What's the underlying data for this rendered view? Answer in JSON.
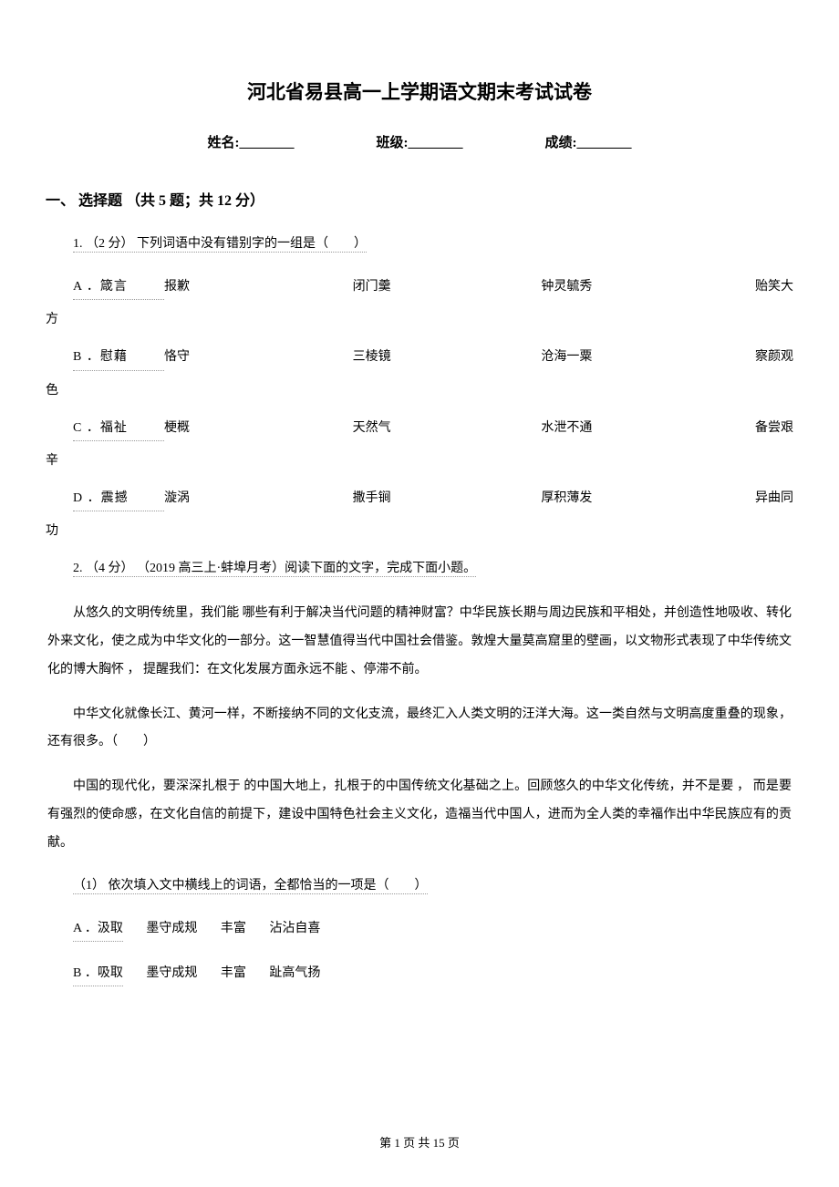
{
  "title": "河北省易县高一上学期语文期末考试试卷",
  "info": {
    "name_label": "姓名:________",
    "class_label": "班级:________",
    "score_label": "成绩:________"
  },
  "section": "一、 选择题 （共 5 题；共 12 分）",
  "q1": {
    "stem": "1.  （2 分）  下列词语中没有错别字的一组是（　　）",
    "options": {
      "A": {
        "l": "A ．箴言",
        "c1": "报歉",
        "c2": "闭门羹",
        "c3": "钟灵毓秀",
        "c4": "贻笑大",
        "t": "方"
      },
      "B": {
        "l": "B ．慰藉",
        "c1": "恪守",
        "c2": "三棱镜",
        "c3": "沧海一粟",
        "c4": "察颜观",
        "t": "色"
      },
      "C": {
        "l": "C ．福祉",
        "c1": "梗概",
        "c2": "天然气",
        "c3": "水泄不通",
        "c4": "备尝艰",
        "t": "辛"
      },
      "D": {
        "l": "D ．震撼",
        "c1": "漩涡",
        "c2": "撒手锏",
        "c3": "厚积薄发",
        "c4": "异曲同",
        "t": "功"
      }
    }
  },
  "q2": {
    "stem": "2.  （4 分） （2019 高三上·蚌埠月考）阅读下面的文字，完成下面小题。",
    "p1": "从悠久的文明传统里，我们能    哪些有利于解决当代问题的精神财富？中华民族长期与周边民族和平相处，并创造性地吸收、转化外来文化，使之成为中华文化的一部分。这一智慧值得当代中国社会借鉴。敦煌大量莫高窟里的壁画，以文物形式表现了中华传统文化的博大胸怀  ，  提醒我们：在文化发展方面永远不能    、停滞不前。",
    "p2": "中华文化就像长江、黄河一样，不断接纳不同的文化支流，最终汇入人类文明的汪洋大海。这一类自然与文明高度重叠的现象，还有很多。（　　）",
    "p3": "中国的现代化，要深深扎根于                              的中国大地上，扎根于的中国传统文化基础之上。回顾悠久的中华文化传统，并不是要                              ，  而是要有强烈的使命感，在文化自信的前提下，建设中国特色社会主义文化，造福当代中国人，进而为全人类的幸福作出中华民族应有的贡献。",
    "sub1": "（1）  依次填入文中横线上的词语，全都恰当的一项是（　　）",
    "optA": {
      "l": "A ．汲取",
      "w1": "墨守成规",
      "w2": "丰富",
      "w3": "沾沾自喜"
    },
    "optB": {
      "l": "B ．吸取",
      "w1": "墨守成规",
      "w2": "丰富",
      "w3": "趾高气扬"
    }
  },
  "footer": "第 1 页 共 15 页"
}
